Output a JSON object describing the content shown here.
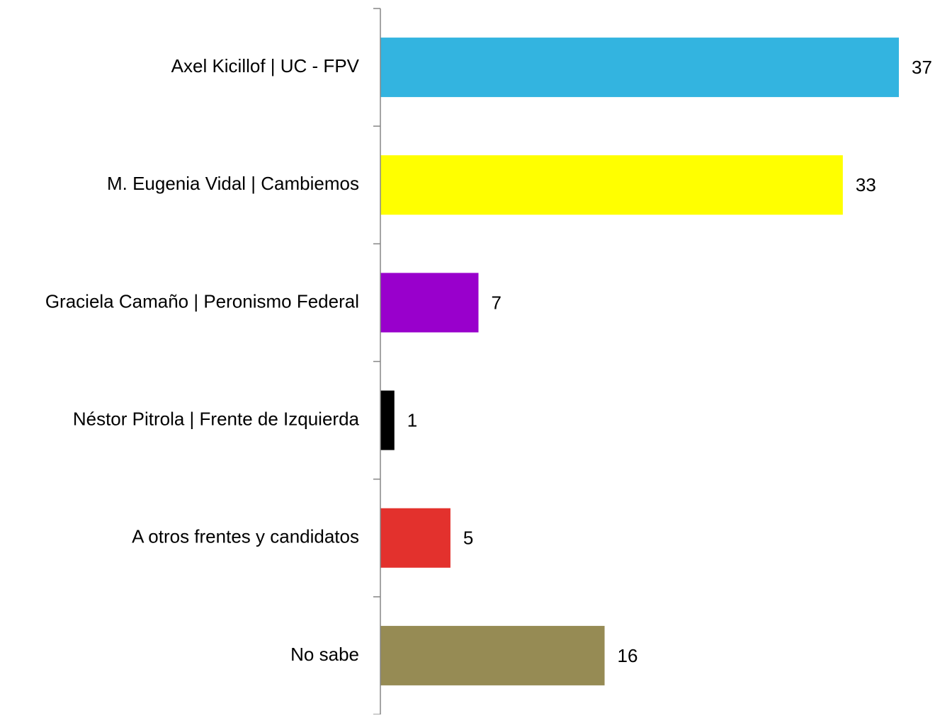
{
  "chart_data": {
    "type": "bar",
    "orientation": "horizontal",
    "categories": [
      "Axel Kicillof | UC - FPV",
      "M. Eugenia Vidal | Cambiemos",
      "Graciela Camaño | Peronismo Federal",
      "Néstor Pitrola | Frente de Izquierda",
      "A otros frentes y candidatos",
      "No sabe"
    ],
    "values": [
      37,
      33,
      7,
      1,
      5,
      16
    ],
    "colors": [
      "#33b4e0",
      "#ffff00",
      "#9900cc",
      "#000000",
      "#e3312d",
      "#968b54"
    ],
    "data_labels": true
  }
}
